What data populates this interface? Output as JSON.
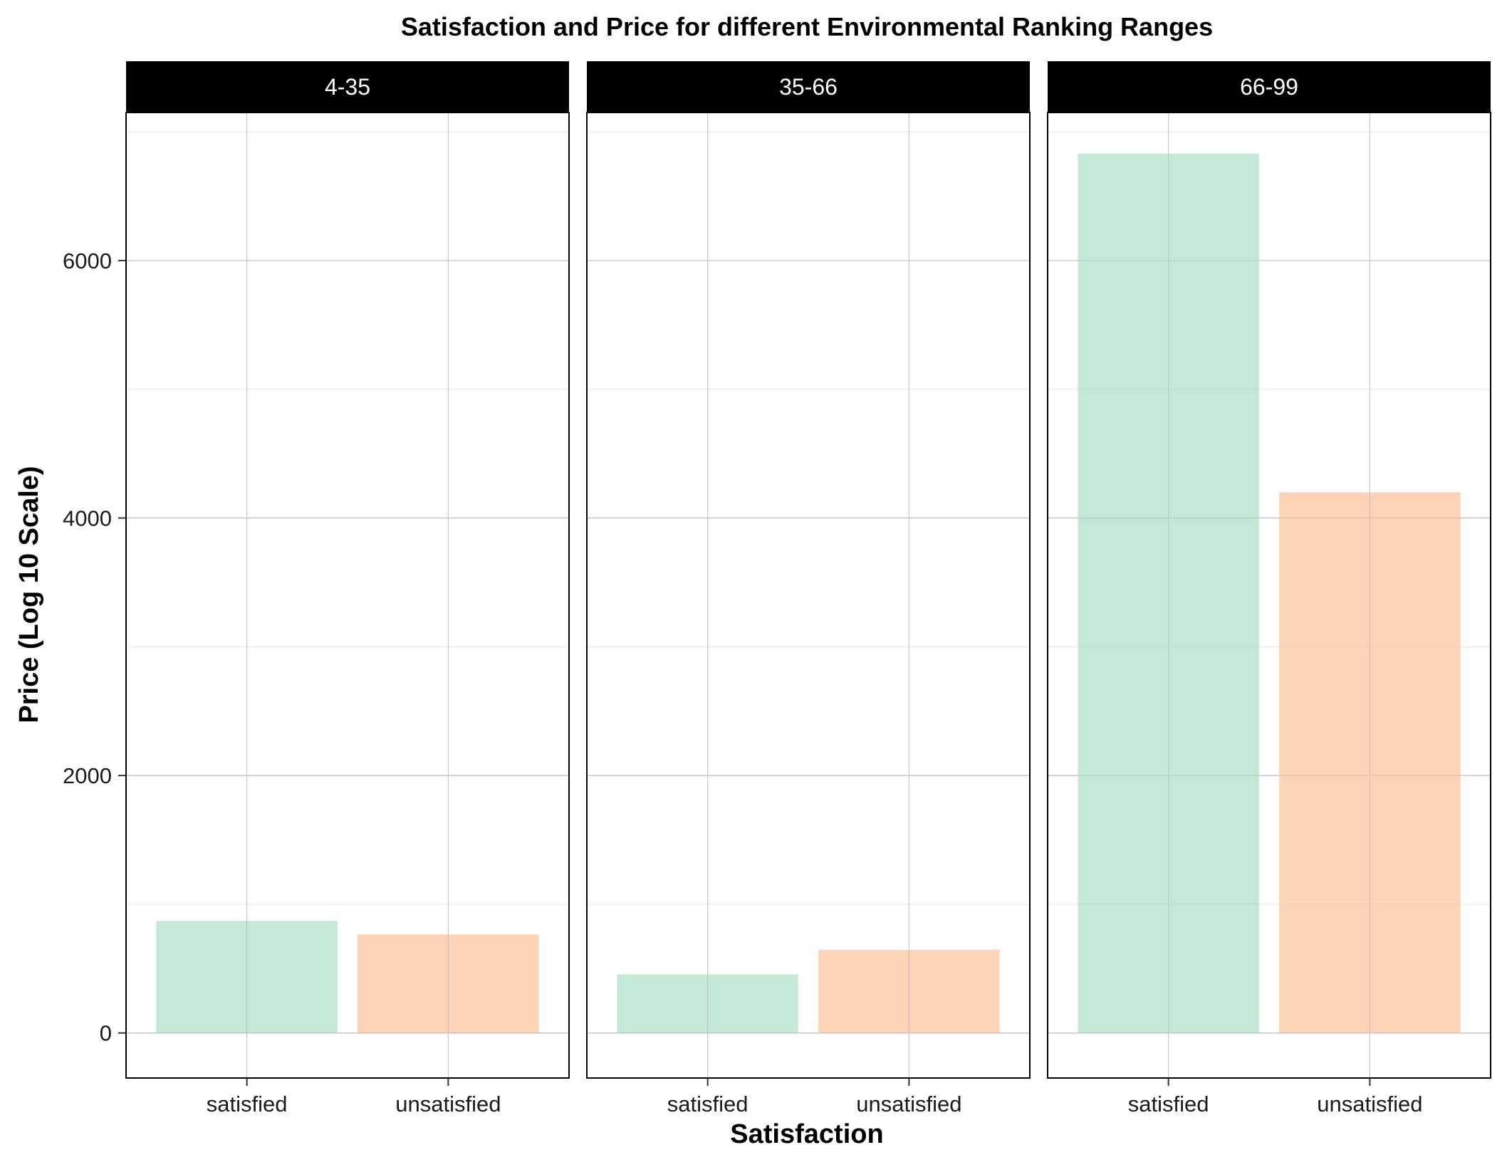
{
  "chart_data": {
    "type": "bar",
    "title": "Satisfaction and Price for different Environmental Ranking Ranges",
    "xlabel": "Satisfaction",
    "ylabel": "Price (Log 10 Scale)",
    "ylim": [
      -350,
      7150
    ],
    "yticks": [
      0,
      2000,
      4000,
      6000
    ],
    "ytick_labels": [
      "0",
      "2000",
      "4000",
      "6000"
    ],
    "minor_yticks": [
      1000,
      3000,
      5000,
      7000
    ],
    "grid": true,
    "categories": [
      "satisfied",
      "unsatisfied"
    ],
    "colors": {
      "satisfied": "#a9dfc4",
      "unsatisfied": "#fcc19a"
    },
    "bar_opacity": 0.7,
    "panels": [
      {
        "label": "4-35",
        "values": [
          870,
          765
        ]
      },
      {
        "label": "35-66",
        "values": [
          455,
          645
        ]
      },
      {
        "label": "66-99",
        "values": [
          6830,
          4200
        ]
      }
    ]
  }
}
